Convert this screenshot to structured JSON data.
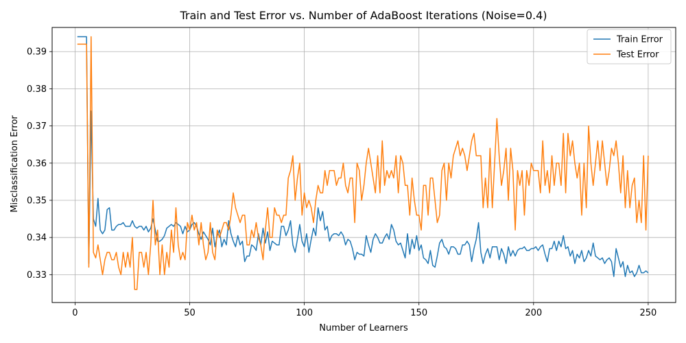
{
  "chart_data": {
    "type": "line",
    "title": "Train and Test Error vs. Number of AdaBoost Iterations (Noise=0.4)",
    "xlabel": "Number of Learners",
    "ylabel": "Misclassification Error",
    "xlim": [
      -10,
      262
    ],
    "ylim": [
      0.3225,
      0.3965
    ],
    "xticks": [
      0,
      50,
      100,
      150,
      200,
      250
    ],
    "yticks": [
      0.33,
      0.34,
      0.35,
      0.36,
      0.37,
      0.38,
      0.39
    ],
    "ytick_labels": [
      "0.33",
      "0.34",
      "0.35",
      "0.36",
      "0.37",
      "0.38",
      "0.39"
    ],
    "grid": true,
    "legend_position": "top-right",
    "x": [
      1,
      2,
      3,
      4,
      5,
      6,
      7,
      8,
      9,
      10,
      11,
      12,
      13,
      14,
      15,
      16,
      17,
      18,
      19,
      20,
      21,
      22,
      23,
      24,
      25,
      26,
      27,
      28,
      29,
      30,
      31,
      32,
      33,
      34,
      35,
      36,
      37,
      38,
      39,
      40,
      41,
      42,
      43,
      44,
      45,
      46,
      47,
      48,
      49,
      50,
      51,
      52,
      53,
      54,
      55,
      56,
      57,
      58,
      59,
      60,
      61,
      62,
      63,
      64,
      65,
      66,
      67,
      68,
      69,
      70,
      71,
      72,
      73,
      74,
      75,
      76,
      77,
      78,
      79,
      80,
      81,
      82,
      83,
      84,
      85,
      86,
      87,
      88,
      89,
      90,
      91,
      92,
      93,
      94,
      95,
      96,
      97,
      98,
      99,
      100,
      101,
      102,
      103,
      104,
      105,
      106,
      107,
      108,
      109,
      110,
      111,
      112,
      113,
      114,
      115,
      116,
      117,
      118,
      119,
      120,
      121,
      122,
      123,
      124,
      125,
      126,
      127,
      128,
      129,
      130,
      131,
      132,
      133,
      134,
      135,
      136,
      137,
      138,
      139,
      140,
      141,
      142,
      143,
      144,
      145,
      146,
      147,
      148,
      149,
      150,
      151,
      152,
      153,
      154,
      155,
      156,
      157,
      158,
      159,
      160,
      161,
      162,
      163,
      164,
      165,
      166,
      167,
      168,
      169,
      170,
      171,
      172,
      173,
      174,
      175,
      176,
      177,
      178,
      179,
      180,
      181,
      182,
      183,
      184,
      185,
      186,
      187,
      188,
      189,
      190,
      191,
      192,
      193,
      194,
      195,
      196,
      197,
      198,
      199,
      200,
      201,
      202,
      203,
      204,
      205,
      206,
      207,
      208,
      209,
      210,
      211,
      212,
      213,
      214,
      215,
      216,
      217,
      218,
      219,
      220,
      221,
      222,
      223,
      224,
      225,
      226,
      227,
      228,
      229,
      230,
      231,
      232,
      233,
      234,
      235,
      236,
      237,
      238,
      239,
      240,
      241,
      242,
      243,
      244,
      245,
      246,
      247,
      248,
      249,
      250
    ],
    "series": [
      {
        "name": "Train Error",
        "color": "#1f77b4",
        "values": [
          0.394,
          0.394,
          0.394,
          0.394,
          0.394,
          0.333,
          0.374,
          0.345,
          0.343,
          0.3505,
          0.342,
          0.341,
          0.342,
          0.3475,
          0.348,
          0.342,
          0.342,
          0.343,
          0.3435,
          0.3435,
          0.344,
          0.343,
          0.343,
          0.343,
          0.3445,
          0.343,
          0.3425,
          0.343,
          0.343,
          0.342,
          0.343,
          0.3415,
          0.3425,
          0.345,
          0.342,
          0.339,
          0.339,
          0.3395,
          0.3405,
          0.3425,
          0.343,
          0.3435,
          0.343,
          0.344,
          0.3435,
          0.343,
          0.341,
          0.343,
          0.3415,
          0.342,
          0.3435,
          0.344,
          0.343,
          0.341,
          0.3395,
          0.3415,
          0.3405,
          0.3395,
          0.338,
          0.3425,
          0.3375,
          0.3405,
          0.342,
          0.3375,
          0.3395,
          0.338,
          0.3445,
          0.341,
          0.339,
          0.3375,
          0.3405,
          0.338,
          0.339,
          0.3335,
          0.335,
          0.335,
          0.338,
          0.3375,
          0.3365,
          0.341,
          0.338,
          0.3425,
          0.3385,
          0.3415,
          0.3365,
          0.339,
          0.3385,
          0.338,
          0.338,
          0.343,
          0.343,
          0.3405,
          0.342,
          0.3445,
          0.338,
          0.336,
          0.3395,
          0.3435,
          0.339,
          0.3375,
          0.341,
          0.336,
          0.3395,
          0.3425,
          0.3405,
          0.348,
          0.3445,
          0.347,
          0.342,
          0.343,
          0.339,
          0.3405,
          0.341,
          0.341,
          0.3405,
          0.3415,
          0.3405,
          0.338,
          0.3395,
          0.339,
          0.337,
          0.334,
          0.336,
          0.3355,
          0.3355,
          0.335,
          0.3405,
          0.338,
          0.336,
          0.3395,
          0.341,
          0.34,
          0.3385,
          0.3385,
          0.34,
          0.341,
          0.3395,
          0.3435,
          0.342,
          0.339,
          0.338,
          0.3385,
          0.3365,
          0.3345,
          0.341,
          0.3355,
          0.3395,
          0.337,
          0.3405,
          0.3365,
          0.338,
          0.3345,
          0.334,
          0.333,
          0.3365,
          0.3325,
          0.332,
          0.335,
          0.3385,
          0.3395,
          0.3375,
          0.337,
          0.3355,
          0.3375,
          0.3375,
          0.337,
          0.3355,
          0.3355,
          0.338,
          0.338,
          0.339,
          0.338,
          0.3335,
          0.337,
          0.3395,
          0.344,
          0.336,
          0.333,
          0.3355,
          0.337,
          0.3345,
          0.3375,
          0.3375,
          0.3375,
          0.334,
          0.337,
          0.3355,
          0.333,
          0.3375,
          0.335,
          0.3365,
          0.335,
          0.3365,
          0.337,
          0.337,
          0.3375,
          0.3365,
          0.3365,
          0.337,
          0.337,
          0.3375,
          0.3365,
          0.3375,
          0.338,
          0.3355,
          0.3335,
          0.337,
          0.337,
          0.339,
          0.3365,
          0.339,
          0.3375,
          0.3405,
          0.337,
          0.3375,
          0.335,
          0.3365,
          0.333,
          0.3355,
          0.3345,
          0.3365,
          0.3335,
          0.3345,
          0.3365,
          0.335,
          0.3385,
          0.335,
          0.3345,
          0.334,
          0.3345,
          0.333,
          0.334,
          0.3345,
          0.3335,
          0.3295,
          0.337,
          0.3345,
          0.332,
          0.3335,
          0.3295,
          0.3325,
          0.3305,
          0.331,
          0.3295,
          0.3305,
          0.3325,
          0.3305,
          0.3305,
          0.331,
          0.3305
        ]
      },
      {
        "name": "Test Error",
        "color": "#ff7f0e",
        "values": [
          0.392,
          0.392,
          0.392,
          0.392,
          0.392,
          0.332,
          0.394,
          0.336,
          0.3345,
          0.338,
          0.334,
          0.33,
          0.334,
          0.336,
          0.336,
          0.334,
          0.334,
          0.336,
          0.332,
          0.33,
          0.336,
          0.332,
          0.336,
          0.332,
          0.34,
          0.326,
          0.326,
          0.336,
          0.336,
          0.332,
          0.336,
          0.33,
          0.338,
          0.35,
          0.338,
          0.342,
          0.33,
          0.338,
          0.33,
          0.336,
          0.332,
          0.342,
          0.336,
          0.348,
          0.338,
          0.334,
          0.336,
          0.334,
          0.344,
          0.342,
          0.346,
          0.342,
          0.344,
          0.338,
          0.344,
          0.338,
          0.334,
          0.336,
          0.344,
          0.336,
          0.334,
          0.342,
          0.34,
          0.342,
          0.344,
          0.344,
          0.342,
          0.346,
          0.352,
          0.348,
          0.346,
          0.344,
          0.346,
          0.346,
          0.338,
          0.338,
          0.342,
          0.34,
          0.344,
          0.34,
          0.338,
          0.334,
          0.342,
          0.348,
          0.34,
          0.34,
          0.348,
          0.346,
          0.346,
          0.344,
          0.346,
          0.346,
          0.356,
          0.358,
          0.362,
          0.35,
          0.356,
          0.36,
          0.346,
          0.352,
          0.348,
          0.35,
          0.348,
          0.344,
          0.35,
          0.354,
          0.352,
          0.352,
          0.358,
          0.354,
          0.358,
          0.358,
          0.358,
          0.354,
          0.356,
          0.356,
          0.36,
          0.354,
          0.352,
          0.356,
          0.356,
          0.344,
          0.36,
          0.358,
          0.35,
          0.354,
          0.36,
          0.364,
          0.36,
          0.356,
          0.352,
          0.362,
          0.352,
          0.366,
          0.354,
          0.358,
          0.356,
          0.358,
          0.356,
          0.362,
          0.352,
          0.362,
          0.36,
          0.354,
          0.354,
          0.346,
          0.356,
          0.35,
          0.346,
          0.346,
          0.342,
          0.354,
          0.354,
          0.346,
          0.356,
          0.356,
          0.35,
          0.344,
          0.346,
          0.358,
          0.36,
          0.35,
          0.36,
          0.356,
          0.362,
          0.364,
          0.366,
          0.362,
          0.364,
          0.362,
          0.358,
          0.362,
          0.366,
          0.368,
          0.362,
          0.362,
          0.362,
          0.348,
          0.356,
          0.348,
          0.364,
          0.348,
          0.36,
          0.372,
          0.362,
          0.354,
          0.358,
          0.364,
          0.35,
          0.364,
          0.358,
          0.342,
          0.358,
          0.354,
          0.358,
          0.346,
          0.358,
          0.354,
          0.36,
          0.358,
          0.358,
          0.358,
          0.352,
          0.366,
          0.354,
          0.358,
          0.352,
          0.362,
          0.354,
          0.36,
          0.36,
          0.354,
          0.368,
          0.352,
          0.368,
          0.362,
          0.366,
          0.36,
          0.356,
          0.36,
          0.346,
          0.36,
          0.348,
          0.37,
          0.36,
          0.354,
          0.36,
          0.366,
          0.358,
          0.366,
          0.36,
          0.354,
          0.358,
          0.364,
          0.362,
          0.366,
          0.36,
          0.352,
          0.362,
          0.348,
          0.358,
          0.348,
          0.354,
          0.356,
          0.344,
          0.35,
          0.344,
          0.362,
          0.342,
          0.362
        ]
      }
    ]
  }
}
